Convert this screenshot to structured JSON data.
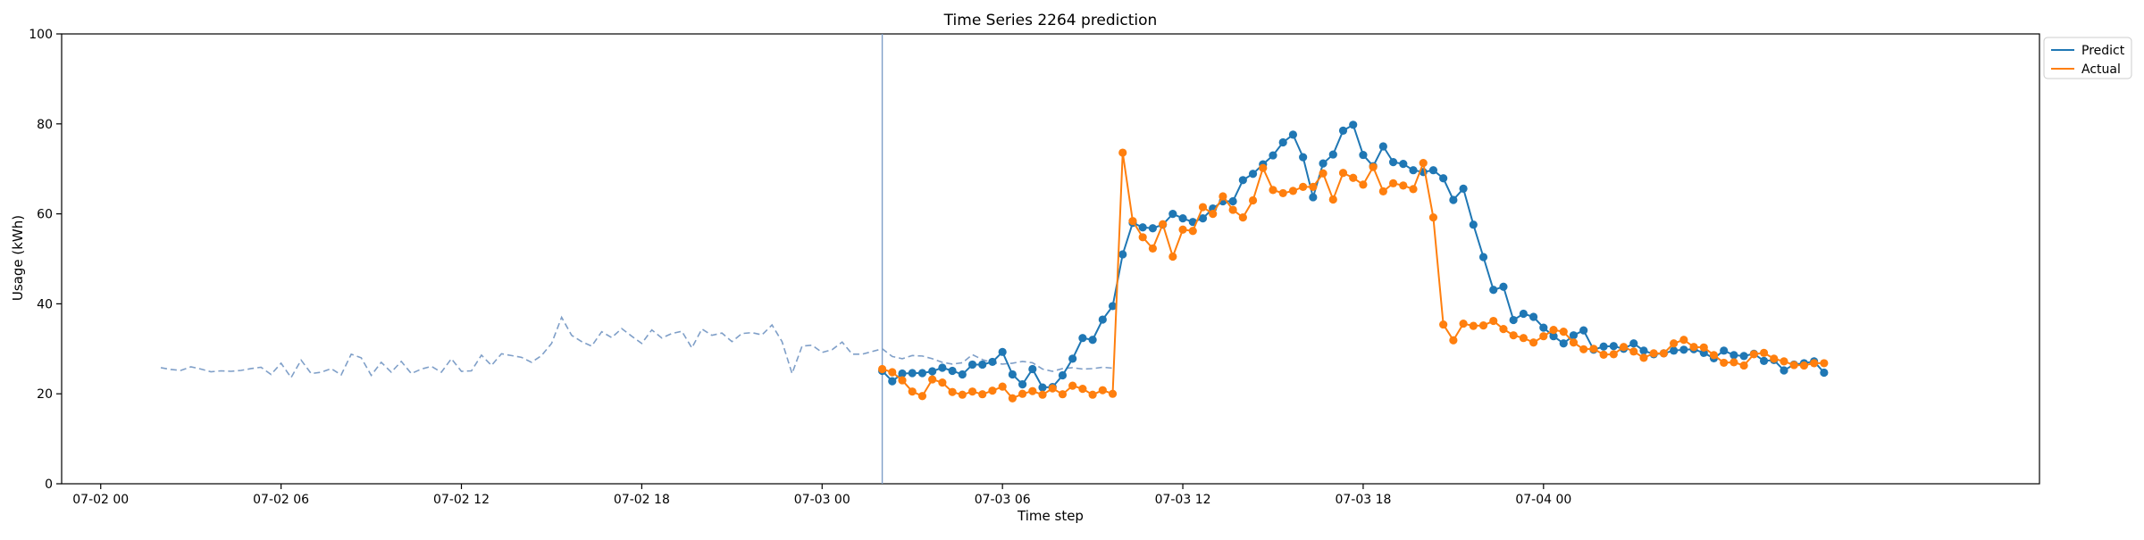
{
  "chart_data": {
    "type": "line",
    "title": "Time Series 2264 prediction",
    "xlabel": "Time step",
    "ylabel": "Usage (kWh)",
    "ylim": [
      0,
      100
    ],
    "xlim_hours": [
      -1.3,
      64.5
    ],
    "x_start": "07-02 02:00",
    "x_step_minutes": 20,
    "y_ticks": [
      0,
      20,
      40,
      60,
      80,
      100
    ],
    "x_ticks": [
      {
        "hour": 0,
        "label": "07-02 00"
      },
      {
        "hour": 6,
        "label": "07-02 06"
      },
      {
        "hour": 12,
        "label": "07-02 12"
      },
      {
        "hour": 18,
        "label": "07-02 18"
      },
      {
        "hour": 24,
        "label": "07-03 00"
      },
      {
        "hour": 30,
        "label": "07-03 06"
      },
      {
        "hour": 36,
        "label": "07-03 12"
      },
      {
        "hour": 42,
        "label": "07-03 18"
      },
      {
        "hour": 48,
        "label": "07-04 00"
      }
    ],
    "grid": false,
    "legend_position": "top-right (outside)",
    "forecast_start_hour": 26,
    "history": {
      "color": "#7f9fc8",
      "style": "dashed",
      "values": [
        25.8,
        25.4,
        25.2,
        26.0,
        25.5,
        24.9,
        25.1,
        25.0,
        25.2,
        25.6,
        25.9,
        24.3,
        26.8,
        23.6,
        27.5,
        24.5,
        24.8,
        25.6,
        24.2,
        28.8,
        28.0,
        24.1,
        27.0,
        24.8,
        27.2,
        24.5,
        25.5,
        26.1,
        24.8,
        27.8,
        25.0,
        25.1,
        28.6,
        26.3,
        28.9,
        28.5,
        28.1,
        27.0,
        28.5,
        31.2,
        37.0,
        33.0,
        31.6,
        30.6,
        33.8,
        32.5,
        34.5,
        32.8,
        31.2,
        34.2,
        32.4,
        33.4,
        33.9,
        30.2,
        34.4,
        33.0,
        33.5,
        31.6,
        33.4,
        33.6,
        33.1,
        35.3,
        31.6,
        24.5,
        30.6,
        30.8,
        29.2,
        29.8,
        31.5,
        28.8,
        28.8,
        29.4,
        30.0,
        28.3,
        27.8,
        28.5,
        28.4,
        27.8,
        27.0,
        26.6,
        26.9,
        28.7,
        27.6,
        26.9,
        26.6,
        26.8,
        27.2,
        26.9,
        25.5,
        25.0,
        25.6,
        25.8,
        25.5,
        25.6,
        25.9,
        25.7
      ]
    },
    "series": [
      {
        "name": "Predict",
        "color": "#1f77b4",
        "values": [
          25.1,
          22.8,
          24.5,
          24.6,
          24.6,
          25.0,
          25.8,
          25.1,
          24.3,
          26.5,
          26.5,
          27.1,
          29.3,
          24.3,
          22.1,
          25.5,
          21.4,
          21.5,
          24.1,
          27.8,
          32.4,
          32.0,
          36.5,
          39.5,
          51.0,
          58.0,
          57.0,
          56.8,
          57.6,
          60.0,
          59.0,
          58.2,
          59.0,
          61.2,
          62.8,
          62.8,
          67.5,
          68.9,
          71.0,
          73.0,
          75.9,
          77.6,
          72.6,
          63.7,
          71.2,
          73.2,
          78.5,
          79.8,
          73.1,
          70.6,
          75.0,
          71.5,
          71.1,
          69.7,
          69.3,
          69.7,
          67.9,
          63.1,
          65.6,
          57.6,
          50.4,
          43.1,
          43.8,
          36.4,
          37.8,
          37.1,
          34.7,
          32.8,
          31.2,
          33.0,
          34.1,
          29.8,
          30.5,
          30.6,
          30.0,
          31.2,
          29.6,
          28.8,
          29.0,
          29.6,
          29.8,
          29.9,
          29.1,
          27.9,
          29.6,
          28.6,
          28.4,
          28.9,
          27.3,
          27.5,
          25.2,
          26.5,
          26.8,
          27.2,
          24.7
        ]
      },
      {
        "name": "Actual",
        "color": "#ff7f0e",
        "values": [
          25.5,
          24.8,
          23.0,
          20.5,
          19.5,
          23.2,
          22.5,
          20.4,
          19.8,
          20.5,
          19.9,
          20.7,
          21.6,
          19.0,
          20.0,
          20.6,
          19.8,
          21.2,
          19.9,
          21.8,
          21.1,
          19.8,
          20.8,
          20.0,
          73.6,
          58.4,
          54.8,
          52.3,
          57.7,
          50.5,
          56.5,
          56.2,
          61.5,
          60.0,
          63.9,
          60.9,
          59.2,
          63.0,
          70.2,
          65.3,
          64.6,
          65.1,
          66.0,
          66.0,
          69.0,
          63.2,
          69.1,
          68.0,
          66.5,
          70.4,
          65.0,
          66.8,
          66.3,
          65.5,
          71.3,
          59.2,
          35.4,
          31.9,
          35.6,
          35.1,
          35.2,
          36.2,
          34.4,
          33.0,
          32.4,
          31.4,
          32.8,
          34.2,
          33.8,
          31.4,
          29.9,
          30.0,
          28.7,
          28.8,
          30.4,
          29.4,
          28.0,
          29.0,
          29.0,
          31.2,
          32.0,
          30.4,
          30.3,
          28.6,
          26.9,
          27.0,
          26.3,
          28.8,
          29.1,
          27.8,
          27.2,
          26.4,
          26.3,
          26.8,
          26.8
        ]
      }
    ]
  }
}
